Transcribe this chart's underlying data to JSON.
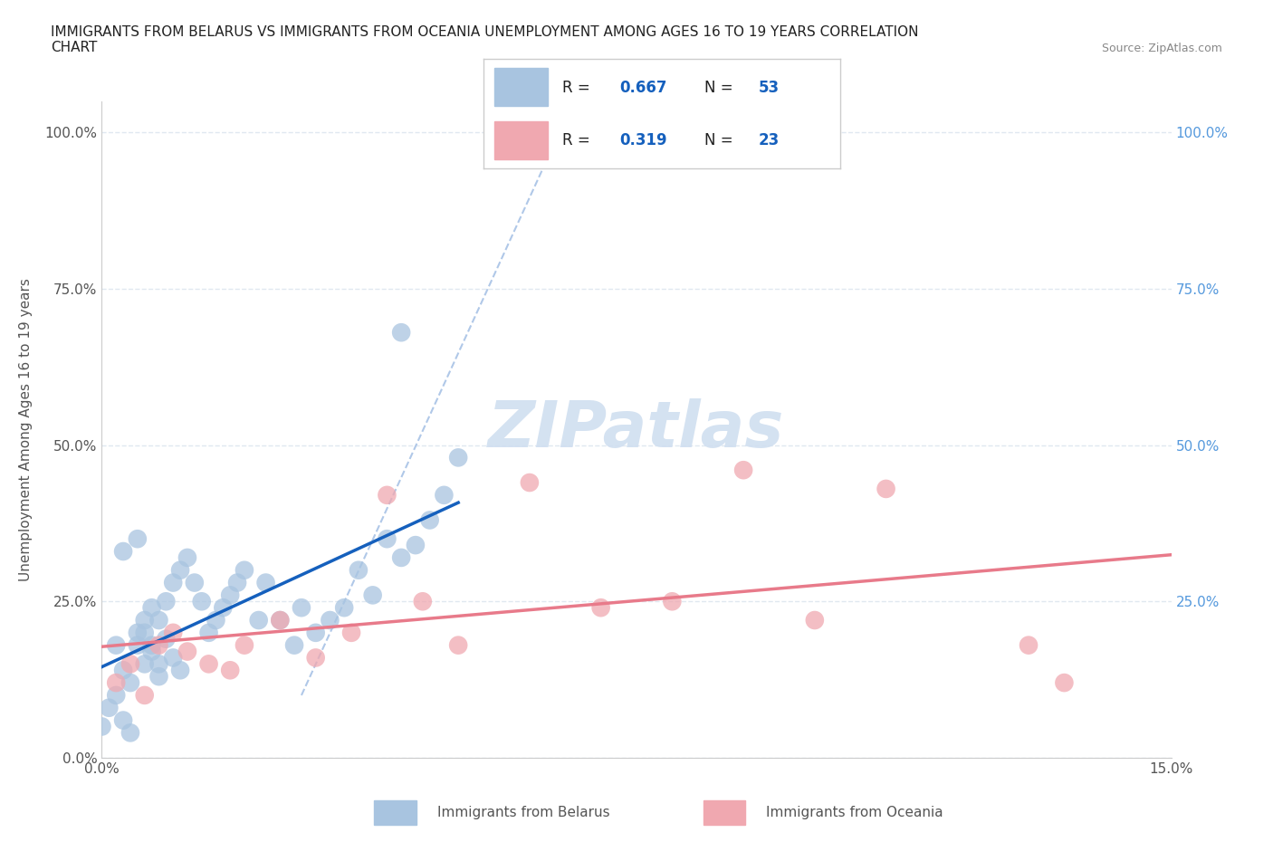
{
  "title": "IMMIGRANTS FROM BELARUS VS IMMIGRANTS FROM OCEANIA UNEMPLOYMENT AMONG AGES 16 TO 19 YEARS CORRELATION\nCHART",
  "source_text": "Source: ZipAtlas.com",
  "ylabel": "Unemployment Among Ages 16 to 19 years",
  "xlim": [
    0.0,
    0.15
  ],
  "ylim": [
    0.0,
    1.05
  ],
  "ytick_values": [
    0.0,
    0.25,
    0.5,
    0.75,
    1.0
  ],
  "r_belarus": 0.667,
  "n_belarus": 53,
  "r_oceania": 0.319,
  "n_oceania": 23,
  "color_belarus": "#a8c4e0",
  "color_oceania": "#f0a8b0",
  "line_color_belarus": "#1560bd",
  "line_color_oceania": "#e87a8a",
  "dashed_line_color": "#b0c8e8",
  "watermark_color": "#d0dff0",
  "background_color": "#ffffff",
  "grid_color": "#e0e8f0",
  "legend_r_color": "#1560bd",
  "belarus_x": [
    0.002,
    0.003,
    0.004,
    0.005,
    0.006,
    0.007,
    0.008,
    0.009,
    0.01,
    0.011,
    0.012,
    0.013,
    0.014,
    0.015,
    0.016,
    0.017,
    0.018,
    0.019,
    0.02,
    0.022,
    0.023,
    0.025,
    0.027,
    0.028,
    0.03,
    0.032,
    0.034,
    0.036,
    0.038,
    0.04,
    0.042,
    0.044,
    0.046,
    0.048,
    0.05,
    0.0,
    0.001,
    0.002,
    0.003,
    0.004,
    0.005,
    0.006,
    0.007,
    0.003,
    0.005,
    0.006,
    0.007,
    0.008,
    0.009,
    0.008,
    0.01,
    0.011,
    0.042
  ],
  "belarus_y": [
    0.18,
    0.14,
    0.12,
    0.2,
    0.15,
    0.18,
    0.22,
    0.25,
    0.28,
    0.3,
    0.32,
    0.28,
    0.25,
    0.2,
    0.22,
    0.24,
    0.26,
    0.28,
    0.3,
    0.22,
    0.28,
    0.22,
    0.18,
    0.24,
    0.2,
    0.22,
    0.24,
    0.3,
    0.26,
    0.35,
    0.32,
    0.34,
    0.38,
    0.42,
    0.48,
    0.05,
    0.08,
    0.1,
    0.06,
    0.04,
    0.18,
    0.22,
    0.24,
    0.33,
    0.35,
    0.2,
    0.17,
    0.15,
    0.19,
    0.13,
    0.16,
    0.14,
    0.68
  ],
  "oceania_x": [
    0.002,
    0.004,
    0.006,
    0.008,
    0.01,
    0.012,
    0.015,
    0.018,
    0.02,
    0.025,
    0.03,
    0.035,
    0.04,
    0.045,
    0.05,
    0.06,
    0.07,
    0.08,
    0.09,
    0.1,
    0.11,
    0.13,
    0.135
  ],
  "oceania_y": [
    0.12,
    0.15,
    0.1,
    0.18,
    0.2,
    0.17,
    0.15,
    0.14,
    0.18,
    0.22,
    0.16,
    0.2,
    0.42,
    0.25,
    0.18,
    0.44,
    0.24,
    0.25,
    0.46,
    0.22,
    0.43,
    0.18,
    0.12
  ]
}
